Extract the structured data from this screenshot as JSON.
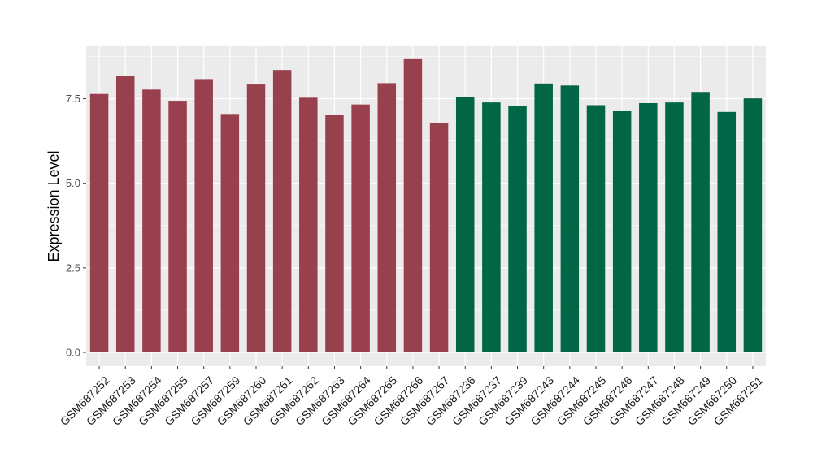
{
  "chart_data": {
    "type": "bar",
    "title": "",
    "xlabel": "",
    "ylabel": "Expression Level",
    "ylim": [
      0,
      9.05
    ],
    "yticks": [
      0.0,
      2.5,
      5.0,
      7.5
    ],
    "ytick_labels": [
      "0.0",
      "2.5",
      "5.0",
      "7.5"
    ],
    "grid": true,
    "legend": "none",
    "categories": [
      "GSM687252",
      "GSM687253",
      "GSM687254",
      "GSM687255",
      "GSM687257",
      "GSM687259",
      "GSM687260",
      "GSM687261",
      "GSM687262",
      "GSM687263",
      "GSM687264",
      "GSM687265",
      "GSM687266",
      "GSM687267",
      "GSM687236",
      "GSM687237",
      "GSM687239",
      "GSM687243",
      "GSM687244",
      "GSM687245",
      "GSM687246",
      "GSM687247",
      "GSM687248",
      "GSM687249",
      "GSM687250",
      "GSM687251"
    ],
    "values": [
      7.64,
      8.18,
      7.77,
      7.44,
      8.08,
      7.05,
      7.92,
      8.35,
      7.53,
      7.03,
      7.33,
      7.96,
      8.67,
      6.78,
      7.56,
      7.39,
      7.29,
      7.95,
      7.89,
      7.31,
      7.13,
      7.37,
      7.39,
      7.7,
      7.11,
      7.51
    ],
    "bar_colors": [
      "#99404f",
      "#99404f",
      "#99404f",
      "#99404f",
      "#99404f",
      "#99404f",
      "#99404f",
      "#99404f",
      "#99404f",
      "#99404f",
      "#99404f",
      "#99404f",
      "#99404f",
      "#99404f",
      "#006646",
      "#006646",
      "#006646",
      "#006646",
      "#006646",
      "#006646",
      "#006646",
      "#006646",
      "#006646",
      "#006646",
      "#006646",
      "#006646"
    ],
    "panel_color": "#ebebeb",
    "grid_color": "#ffffff"
  }
}
